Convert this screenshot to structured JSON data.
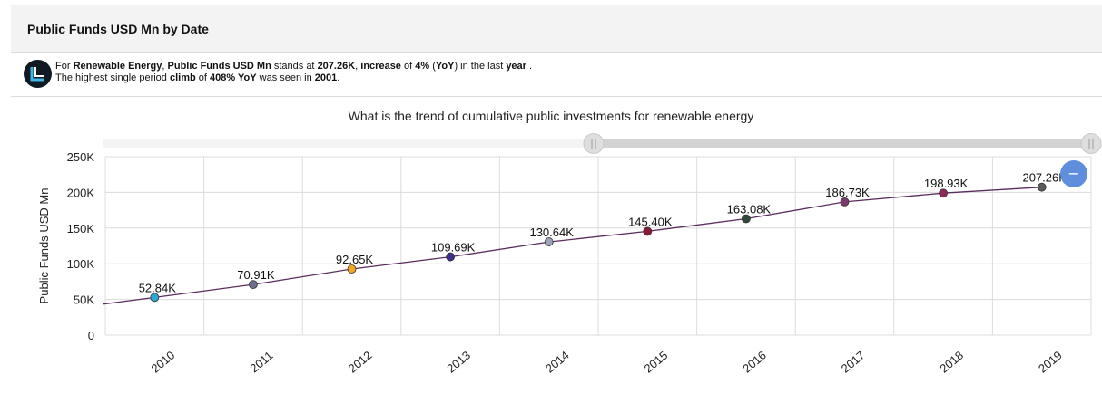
{
  "header": {
    "title": "Public Funds USD Mn by Date"
  },
  "insight": {
    "line1": [
      {
        "t": "For ",
        "b": false
      },
      {
        "t": "Renewable Energy",
        "b": true
      },
      {
        "t": ", ",
        "b": false
      },
      {
        "t": "Public Funds USD Mn",
        "b": true
      },
      {
        "t": " stands at ",
        "b": false
      },
      {
        "t": "207.26K",
        "b": true
      },
      {
        "t": ", ",
        "b": false
      },
      {
        "t": "increase",
        "b": true
      },
      {
        "t": " of ",
        "b": false
      },
      {
        "t": "4%",
        "b": true
      },
      {
        "t": " (",
        "b": false
      },
      {
        "t": "YoY",
        "b": true
      },
      {
        "t": ") in the last ",
        "b": false
      },
      {
        "t": "year",
        "b": true
      },
      {
        "t": " .",
        "b": false
      }
    ],
    "line2": [
      {
        "t": "The highest single period ",
        "b": false
      },
      {
        "t": "climb",
        "b": true
      },
      {
        "t": " of ",
        "b": false
      },
      {
        "t": "408% YoY",
        "b": true
      },
      {
        "t": " was seen in ",
        "b": false
      },
      {
        "t": "2001",
        "b": true
      },
      {
        "t": ".",
        "b": false
      }
    ]
  },
  "colors": {
    "line": "#5b2c5e",
    "grid": "#dcdcdc",
    "slider_track": "#d3d3d3",
    "slider_handle": "#dedede",
    "zoom_button": "#5f8fdc"
  },
  "zoom_button": {
    "icon": "minus-icon",
    "label": "−"
  },
  "chart_data": {
    "type": "line",
    "title": "What is the trend of cumulative public investments for renewable energy",
    "ylabel": "Public Funds USD Mn",
    "xlabel": "",
    "ylim": [
      0,
      250000
    ],
    "yticks": [
      0,
      50000,
      100000,
      150000,
      200000,
      250000
    ],
    "ytick_labels": [
      "0",
      "50K",
      "100K",
      "150K",
      "200K",
      "250K"
    ],
    "grid": true,
    "categories": [
      "2010",
      "2011",
      "2012",
      "2013",
      "2014",
      "2015",
      "2016",
      "2017",
      "2018",
      "2019"
    ],
    "series": [
      {
        "values": [
          52840,
          70910,
          92650,
          109690,
          130640,
          145400,
          163080,
          186730,
          198930,
          207260
        ],
        "labels": [
          "52.84K",
          "70.91K",
          "92.65K",
          "109.69K",
          "130.64K",
          "145.40K",
          "163.08K",
          "186.73K",
          "198.93K",
          "207.26K"
        ],
        "point_colors": [
          "#2aa7d8",
          "#6e6e8e",
          "#f5a623",
          "#3b2f8f",
          "#9aa3b8",
          "#8b1a3a",
          "#2f4a3a",
          "#7a3a6e",
          "#8e2a5a",
          "#5a5a5a"
        ]
      }
    ]
  }
}
